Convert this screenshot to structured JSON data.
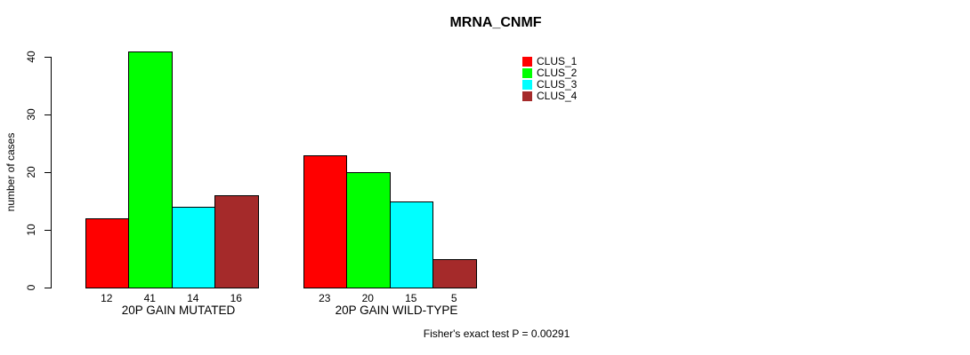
{
  "chart_data": {
    "type": "bar",
    "title": "MRNA_CNMF",
    "ylabel": "number of cases",
    "xlabel": "",
    "ylim": [
      0,
      40
    ],
    "yticks": [
      0,
      10,
      20,
      30,
      40
    ],
    "grid": false,
    "legend_position": "top-right",
    "categories": [
      "20P GAIN MUTATED",
      "20P GAIN WILD-TYPE"
    ],
    "series": [
      {
        "name": "CLUS_1",
        "color": "#ff0000",
        "values": [
          12,
          23
        ]
      },
      {
        "name": "CLUS_2",
        "color": "#00ff00",
        "values": [
          41,
          20
        ]
      },
      {
        "name": "CLUS_3",
        "color": "#00ffff",
        "values": [
          14,
          15
        ]
      },
      {
        "name": "CLUS_4",
        "color": "#a52a2a",
        "values": [
          16,
          5
        ]
      }
    ],
    "groups": [
      {
        "label": "20P GAIN MUTATED",
        "values": [
          12,
          41,
          14,
          16
        ]
      },
      {
        "label": "20P GAIN WILD-TYPE",
        "values": [
          23,
          20,
          15,
          5
        ]
      }
    ],
    "bar_value_labels": [
      "12",
      "41",
      "14",
      "16",
      "23",
      "20",
      "15",
      "5"
    ],
    "footer": "Fisher's exact test P = 0.00291"
  }
}
